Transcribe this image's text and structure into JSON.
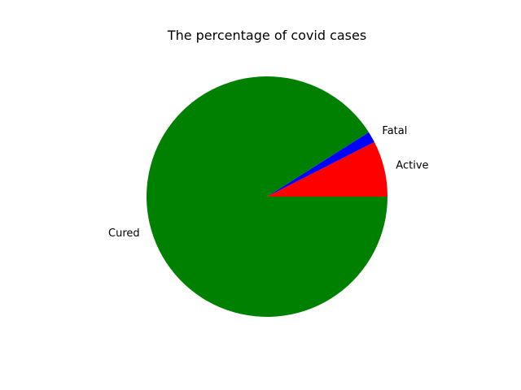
{
  "chart_data": {
    "type": "pie",
    "title": "The percentage of covid cases",
    "start_angle_deg": 0,
    "direction": "counterclockwise",
    "slices": [
      {
        "label": "Active",
        "value": 7.5,
        "color": "#ff0000"
      },
      {
        "label": "Fatal",
        "value": 1.5,
        "color": "#0000ff"
      },
      {
        "label": "Cured",
        "value": 91.0,
        "color": "#008000"
      }
    ]
  }
}
